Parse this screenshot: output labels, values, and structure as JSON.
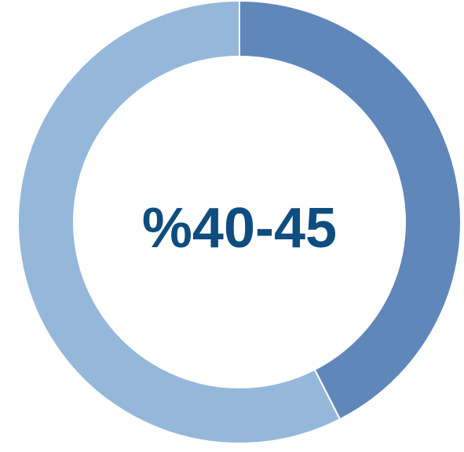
{
  "chart_data": {
    "type": "pie",
    "variant": "donut",
    "center_label": "%40-45",
    "slices": [
      {
        "value": 42.5,
        "color": "#5f87ba"
      },
      {
        "value": 57.5,
        "color": "#95b8da"
      }
    ],
    "start": "top",
    "direction": "clockwise",
    "separator_color": "#ffffff",
    "center_label_color": "#0f4d80",
    "legend": "none",
    "title": ""
  }
}
